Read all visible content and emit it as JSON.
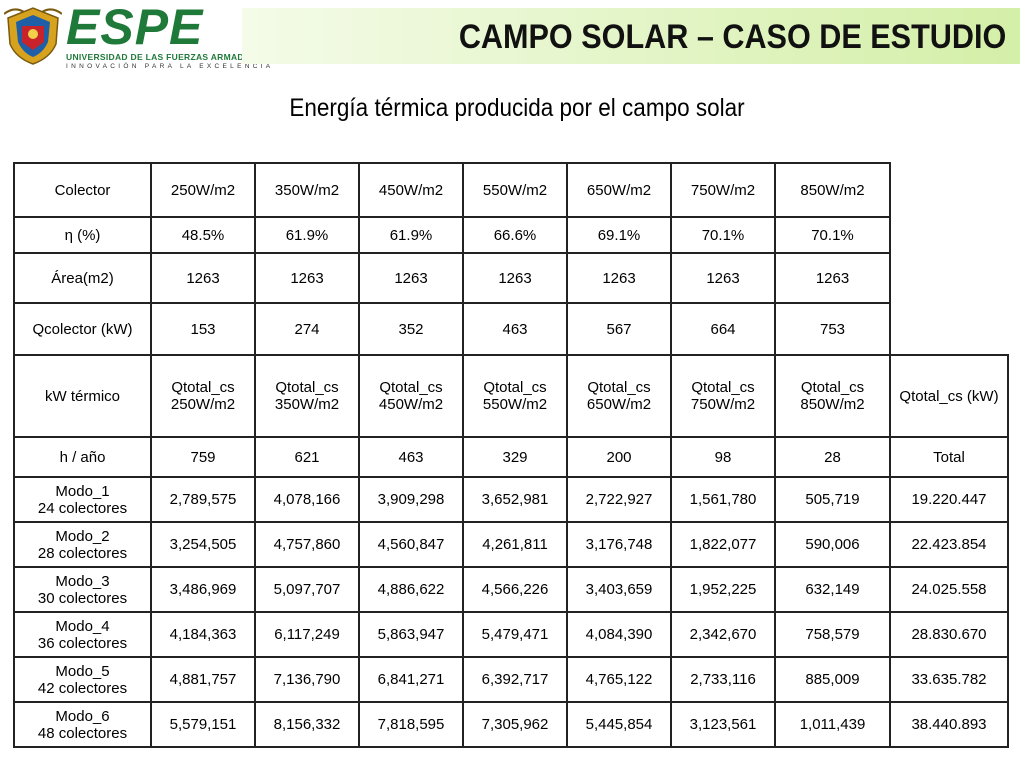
{
  "header": {
    "logo_word": "ESPE",
    "logo_subtitle": "UNIVERSIDAD DE LAS FUERZAS ARMADAS",
    "logo_motto": "INNOVACIÓN PARA LA EXCELENCIA",
    "title": "CAMPO SOLAR – CASO DE ESTUDIO"
  },
  "subtitle": "Energía térmica producida por el campo solar",
  "table1": {
    "rows": [
      {
        "label": "Colector",
        "values": [
          "250W/m2",
          "350W/m2",
          "450W/m2",
          "550W/m2",
          "650W/m2",
          "750W/m2",
          "850W/m2"
        ]
      },
      {
        "label": "η (%)",
        "values": [
          "48.5%",
          "61.9%",
          "61.9%",
          "66.6%",
          "69.1%",
          "70.1%",
          "70.1%"
        ]
      },
      {
        "label": "Área(m2)",
        "values": [
          "1263",
          "1263",
          "1263",
          "1263",
          "1263",
          "1263",
          "1263"
        ]
      },
      {
        "label": "Qcolector (kW)",
        "values": [
          "153",
          "274",
          "352",
          "463",
          "567",
          "664",
          "753"
        ]
      }
    ]
  },
  "table2": {
    "header_label": "kW térmico",
    "header_cols": [
      {
        "q": "Qtotal_cs",
        "irr": "250W/m2"
      },
      {
        "q": "Qtotal_cs",
        "irr": "350W/m2"
      },
      {
        "q": "Qtotal_cs",
        "irr": "450W/m2"
      },
      {
        "q": "Qtotal_cs",
        "irr": "550W/m2"
      },
      {
        "q": "Qtotal_cs",
        "irr": "650W/m2"
      },
      {
        "q": "Qtotal_cs",
        "irr": "750W/m2"
      },
      {
        "q": "Qtotal_cs",
        "irr": "850W/m2"
      }
    ],
    "header_last": "Qtotal_cs (kW)",
    "hours_label": "h / año",
    "hours": [
      "759",
      "621",
      "463",
      "329",
      "200",
      "98",
      "28"
    ],
    "total_label": "Total",
    "rows": [
      {
        "modo": "Modo_1",
        "colectores": "24 colectores",
        "values": [
          "2,789,575",
          "4,078,166",
          "3,909,298",
          "3,652,981",
          "2,722,927",
          "1,561,780",
          "505,719"
        ],
        "total": "19.220.447"
      },
      {
        "modo": "Modo_2",
        "colectores": "28 colectores",
        "values": [
          "3,254,505",
          "4,757,860",
          "4,560,847",
          "4,261,811",
          "3,176,748",
          "1,822,077",
          "590,006"
        ],
        "total": "22.423.854"
      },
      {
        "modo": "Modo_3",
        "colectores": "30 colectores",
        "values": [
          "3,486,969",
          "5,097,707",
          "4,886,622",
          "4,566,226",
          "3,403,659",
          "1,952,225",
          "632,149"
        ],
        "total": "24.025.558"
      },
      {
        "modo": "Modo_4",
        "colectores": "36 colectores",
        "values": [
          "4,184,363",
          "6,117,249",
          "5,863,947",
          "5,479,471",
          "4,084,390",
          "2,342,670",
          "758,579"
        ],
        "total": "28.830.670"
      },
      {
        "modo": "Modo_5",
        "colectores": "42 colectores",
        "values": [
          "4,881,757",
          "7,136,790",
          "6,841,271",
          "6,392,717",
          "4,765,122",
          "2,733,116",
          "885,009"
        ],
        "total": "33.635.782"
      },
      {
        "modo": "Modo_6",
        "colectores": "48 colectores",
        "values": [
          "5,579,151",
          "8,156,332",
          "7,818,595",
          "7,305,962",
          "5,445,854",
          "3,123,561",
          "1,011,439"
        ],
        "total": "38.440.893"
      }
    ]
  }
}
